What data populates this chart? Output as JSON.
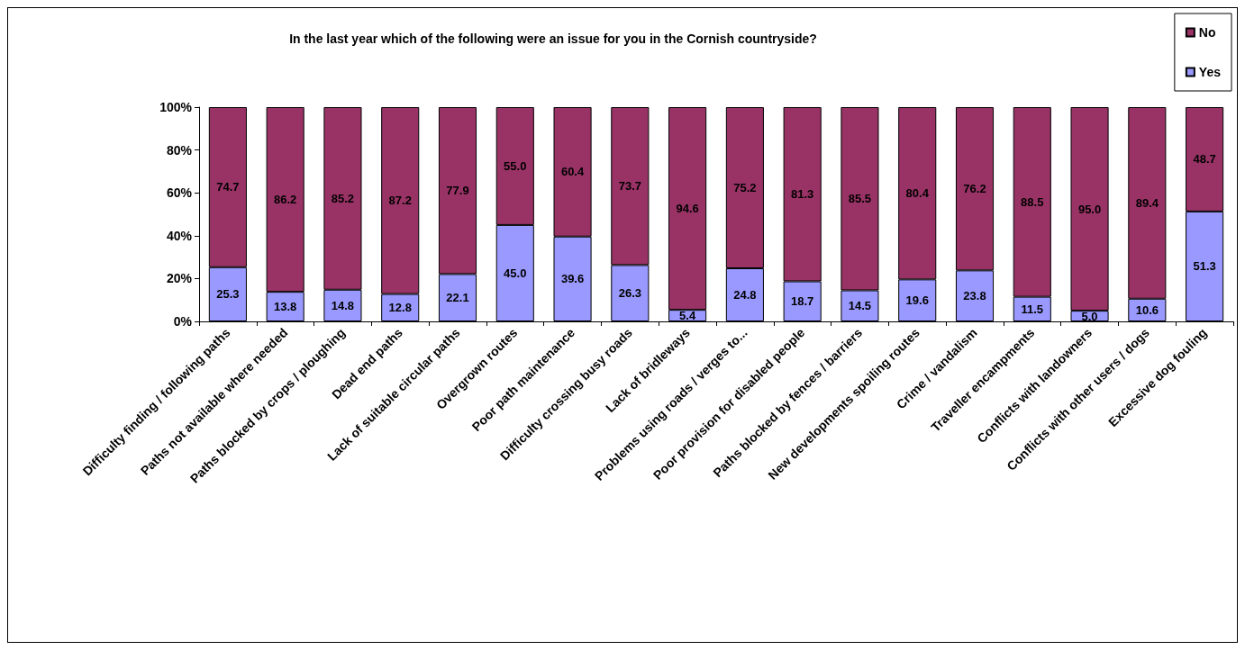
{
  "chart_data": {
    "type": "bar",
    "title": "In the last year which of the following were an issue for you in the Cornish countryside?",
    "categories": [
      "Difficulty finding / following paths",
      "Paths not available where needed",
      "Paths blocked by crops / ploughing",
      "Dead end paths",
      "Lack of suitable circular paths",
      "Overgrown routes",
      "Poor path maintenance",
      "Difficulty crossing busy roads",
      "Lack of bridleways",
      "Problems using roads / verges to...",
      "Poor provision for disabled people",
      "Paths blocked by fences / barriers",
      "New developments spoiling routes",
      "Crime / vandalism",
      "Traveller encampments",
      "Conflicts with landowners",
      "Conflicts with other users / dogs",
      "Excessive dog fouling"
    ],
    "series": [
      {
        "name": "Yes",
        "color": "#9999ff",
        "values": [
          25.3,
          13.8,
          14.8,
          12.8,
          22.1,
          45.0,
          39.6,
          26.3,
          5.4,
          24.8,
          18.7,
          14.5,
          19.6,
          23.8,
          11.5,
          5.0,
          10.6,
          51.3
        ],
        "value_labels": [
          "25.3",
          "13.8",
          "14.8",
          "12.8",
          "22.1",
          "45.0",
          "39.6",
          "26.3",
          "5.4",
          "24.8",
          "18.7",
          "14.5",
          "19.6",
          "23.8",
          "11.5",
          "5.0",
          "10.6",
          "51.3"
        ]
      },
      {
        "name": "No",
        "color": "#993366",
        "values": [
          74.7,
          86.2,
          85.2,
          87.2,
          77.9,
          55.0,
          60.4,
          73.7,
          94.6,
          75.2,
          81.3,
          85.5,
          80.4,
          76.2,
          88.5,
          95.0,
          89.4,
          48.7
        ],
        "value_labels": [
          "74.7",
          "86.2",
          "85.2",
          "87.2",
          "77.9",
          "55.0",
          "60.4",
          "73.7",
          "94.6",
          "75.2",
          "81.3",
          "85.5",
          "80.4",
          "76.2",
          "88.5",
          "95.0",
          "89.4",
          "48.7"
        ]
      }
    ],
    "stacked": true,
    "legend": "top right",
    "ylim": [
      0,
      100
    ],
    "yticks": [
      {
        "value": 0,
        "label": "0%"
      },
      {
        "value": 20,
        "label": "20%"
      },
      {
        "value": 40,
        "label": "40%"
      },
      {
        "value": 60,
        "label": "60%"
      },
      {
        "value": 80,
        "label": "80%"
      },
      {
        "value": 100,
        "label": "100%"
      }
    ]
  }
}
